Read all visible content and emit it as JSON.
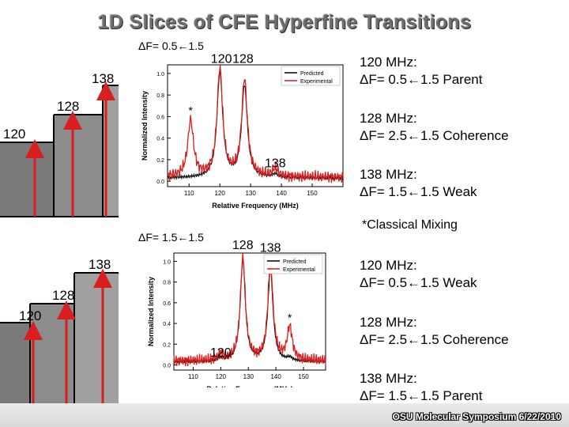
{
  "title": "1D Slices of CFE Hyperfine Transitions",
  "footer": "OSU Molecular Symposium 6/22/2010",
  "classical_note": "*Classical Mixing",
  "colors": {
    "red": "#d81e1e",
    "black": "#000000",
    "gray": "#808080"
  },
  "top": {
    "panel_label": "ΔF= 0.5←1.5",
    "stick_labels": {
      "s138": "138",
      "s128": "128",
      "s120": "120"
    },
    "descriptions": [
      {
        "l1": "120 MHz:",
        "l2": "ΔF= 0.5←1.5 Parent"
      },
      {
        "l1": "128 MHz:",
        "l2": "ΔF= 2.5←1.5 Coherence"
      },
      {
        "l1": "138 MHz:",
        "l2": "ΔF= 1.5←1.5 Weak"
      }
    ]
  },
  "bottom": {
    "panel_label": "ΔF= 1.5←1.5",
    "stick_labels": {
      "s138": "138",
      "s128": "128",
      "s120": "120"
    },
    "descriptions": [
      {
        "l1": "120 MHz:",
        "l2": "ΔF= 0.5←1.5 Weak"
      },
      {
        "l1": "128 MHz:",
        "l2": "ΔF= 2.5←1.5 Coherence"
      },
      {
        "l1": "138 MHz:",
        "l2": "ΔF= 1.5←1.5 Parent"
      }
    ]
  },
  "chart_data": [
    {
      "type": "line",
      "panel": "top",
      "xlabel": "Relative Frequency (MHz)",
      "ylabel": "Normalized Intensity",
      "xlim": [
        103,
        160
      ],
      "ylim": [
        -0.05,
        1.08
      ],
      "xticks": [
        110,
        120,
        130,
        140,
        150
      ],
      "yticks": [
        0.0,
        0.2,
        0.4,
        0.6,
        0.8,
        1.0
      ],
      "legend": [
        "Predicted",
        "Experimental"
      ],
      "legend_placement": "top-right",
      "annotations": [
        {
          "text": "120",
          "x": 120.5,
          "y": 1.1
        },
        {
          "text": "128",
          "x": 127.5,
          "y": 1.1
        },
        {
          "text": "*",
          "x": 110.5,
          "y": 0.62
        },
        {
          "text": "138",
          "x": 138,
          "y": 0.13
        }
      ],
      "series": [
        {
          "name": "Predicted",
          "color": "#000000",
          "peaks": [
            [
              120,
              0.97
            ],
            [
              128,
              0.85
            ],
            [
              138,
              0.03
            ]
          ]
        },
        {
          "name": "Experimental",
          "color": "#d81e1e",
          "peaks": [
            [
              110.5,
              0.52
            ],
            [
              120,
              1.0
            ],
            [
              128,
              0.9
            ],
            [
              138,
              0.07
            ]
          ]
        }
      ]
    },
    {
      "type": "line",
      "panel": "bottom",
      "xlabel": "Relative Frequency (MHz)",
      "ylabel": "Normalized Intensity",
      "xlim": [
        103,
        158
      ],
      "ylim": [
        -0.05,
        1.08
      ],
      "xticks": [
        110,
        120,
        130,
        140,
        150
      ],
      "yticks": [
        0.0,
        0.2,
        0.4,
        0.6,
        0.8,
        1.0
      ],
      "legend": [
        "Predicted",
        "Experimental"
      ],
      "legend_placement": "top-right",
      "annotations": [
        {
          "text": "128",
          "x": 128,
          "y": 1.12
        },
        {
          "text": "138",
          "x": 138,
          "y": 1.09
        },
        {
          "text": "*",
          "x": 145,
          "y": 0.42
        },
        {
          "text": "120",
          "x": 120,
          "y": 0.08
        }
      ],
      "series": [
        {
          "name": "Predicted",
          "color": "#000000",
          "peaks": [
            [
              120,
              0.03
            ],
            [
              128,
              0.97
            ],
            [
              138,
              0.88
            ],
            [
              145,
              0.03
            ]
          ]
        },
        {
          "name": "Experimental",
          "color": "#d81e1e",
          "peaks": [
            [
              120,
              0.06
            ],
            [
              128,
              1.0
            ],
            [
              138,
              0.95
            ],
            [
              145,
              0.32
            ]
          ]
        }
      ]
    }
  ]
}
